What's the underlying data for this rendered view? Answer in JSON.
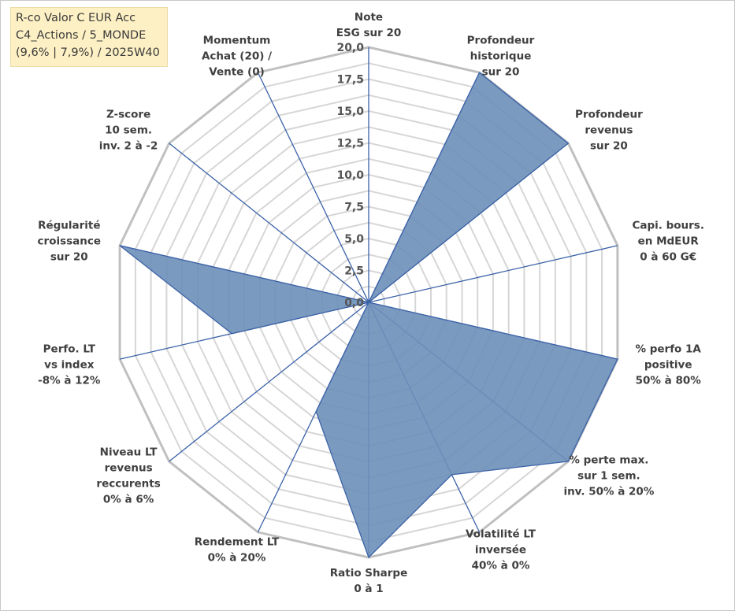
{
  "info_box": {
    "line1": "R-co Valor C EUR Acc",
    "line2": "C4_Actions / 5_MONDE",
    "line3": "(9,6% | 7,9%) / 2025W40"
  },
  "chart_data": {
    "type": "radar",
    "title": "",
    "rmax": 20,
    "ticks": [
      "0,0",
      "2,5",
      "5,0",
      "7,5",
      "10,0",
      "12,5",
      "15,0",
      "17,5",
      "20,0"
    ],
    "tick_values": [
      0,
      2.5,
      5,
      7.5,
      10,
      12.5,
      15,
      17.5,
      20
    ],
    "gridline_step": 1.25,
    "axes": [
      {
        "label": [
          "Note",
          "ESG sur 20"
        ],
        "value": 0
      },
      {
        "label": [
          "Profondeur",
          "historique",
          "sur 20"
        ],
        "value": 20
      },
      {
        "label": [
          "Profondeur",
          "revenus",
          "sur 20"
        ],
        "value": 20
      },
      {
        "label": [
          "Capi. bours.",
          "en MdEUR",
          "0 à 60 G€"
        ],
        "value": 0
      },
      {
        "label": [
          "% perfo 1A",
          "positive",
          "50% à 80%"
        ],
        "value": 20
      },
      {
        "label": [
          "% perte max.",
          "sur 1 sem.",
          "inv. 50% à 20%"
        ],
        "value": 20
      },
      {
        "label": [
          "Volatilité LT",
          "inversée",
          "40% à 0%"
        ],
        "value": 15
      },
      {
        "label": [
          "Ratio Sharpe",
          "0 à 1"
        ],
        "value": 20
      },
      {
        "label": [
          "Rendement LT",
          "0% à 20%"
        ],
        "value": 9.5
      },
      {
        "label": [
          "Niveau LT",
          "revenus",
          "reccurents",
          "0% à 6%"
        ],
        "value": 0
      },
      {
        "label": [
          "Perfo. LT",
          "vs index",
          "-8% à 12%"
        ],
        "value": 11
      },
      {
        "label": [
          "Régularité",
          "croissance",
          "sur 20"
        ],
        "value": 20
      },
      {
        "label": [
          "Z-score",
          "10 sem.",
          "inv. 2 à -2"
        ],
        "value": 0
      },
      {
        "label": [
          "Momentum",
          "Achat (20) /",
          "Vente (0)"
        ],
        "value": 0
      }
    ],
    "colors": {
      "fill": "#6d8fb8",
      "stroke": "#3b62a8",
      "spoke": "#3b62a8",
      "outer_grid": "#c0c0c0",
      "inner_grid": "#d6d6d6"
    }
  }
}
